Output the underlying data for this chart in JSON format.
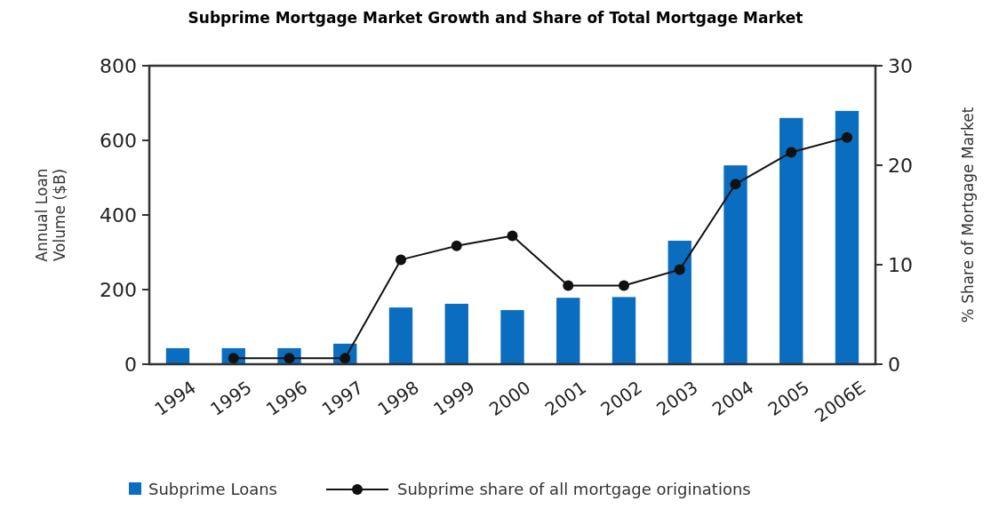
{
  "chart_data": {
    "type": "bar",
    "title": "Subprime Mortgage Market Growth and Share of Total Mortgage Market",
    "ylabel": "Annual Loan Volume ($B)",
    "y2label": "% Share of Mortgage Market",
    "categories": [
      "1994",
      "1995",
      "1996",
      "1997",
      "1998",
      "1999",
      "2000",
      "2001",
      "2002",
      "2003",
      "2004",
      "2005",
      "2006E"
    ],
    "series": [
      {
        "name": "Subprime Loans",
        "color": "#0a6dbf",
        "values": [
          43,
          43,
          43,
          55,
          152,
          162,
          145,
          178,
          180,
          331,
          533,
          660,
          679
        ]
      },
      {
        "name": "Subprime share of all mortgage originations",
        "type": "line",
        "axis": "y2",
        "color": "#111111",
        "marker": "circle",
        "values": [
          null,
          0.6,
          0.6,
          0.6,
          10.5,
          11.9,
          12.9,
          7.9,
          7.9,
          9.5,
          18.1,
          21.3,
          22.8
        ]
      }
    ],
    "ylim": [
      0,
      800
    ],
    "yticks": [
      0,
      200,
      400,
      600,
      800
    ],
    "y2lim": [
      0,
      30
    ],
    "y2ticks": [
      0,
      10,
      20,
      30
    ],
    "grid": false,
    "legend": "bottom"
  }
}
